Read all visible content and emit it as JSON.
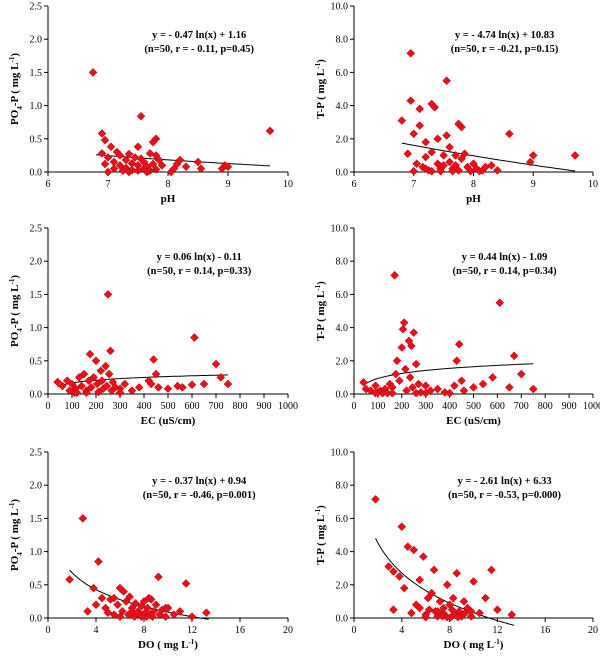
{
  "chart_data": [
    {
      "type": "scatter",
      "xlabel": "pH",
      "ylabel": "PO4-P ( mg L-1)",
      "xlim": [
        6,
        10
      ],
      "ylim": [
        0,
        2.5
      ],
      "xticks": [
        6,
        7,
        8,
        9,
        10
      ],
      "yticks": [
        "0.0",
        "0.5",
        "1.0",
        "1.5",
        "2.0",
        "2.5"
      ],
      "equation": "y = - 0.47 ln(x) + 1.16",
      "stats": "(n=50, r = - 0.11, p=0.45)",
      "trend": {
        "a": -0.47,
        "b": 1.16,
        "from": 6.8,
        "to": 9.7
      },
      "marker_color": "#e8101a",
      "points": [
        [
          6.75,
          1.5
        ],
        [
          6.9,
          0.58
        ],
        [
          6.95,
          0.48
        ],
        [
          6.9,
          0.28
        ],
        [
          6.95,
          0.12
        ],
        [
          7.0,
          0.22
        ],
        [
          7.05,
          0.38
        ],
        [
          7.1,
          0.15
        ],
        [
          7.1,
          0.05
        ],
        [
          7.15,
          0.3
        ],
        [
          7.2,
          0.1
        ],
        [
          7.2,
          0.25
        ],
        [
          7.25,
          0.02
        ],
        [
          7.3,
          0.18
        ],
        [
          7.3,
          0.06
        ],
        [
          7.35,
          0.27
        ],
        [
          7.4,
          0.13
        ],
        [
          7.4,
          0.03
        ],
        [
          7.45,
          0.22
        ],
        [
          7.5,
          0.38
        ],
        [
          7.5,
          0.1
        ],
        [
          7.5,
          0.02
        ],
        [
          7.55,
          0.84
        ],
        [
          7.55,
          0.2
        ],
        [
          7.6,
          0.05
        ],
        [
          7.6,
          0.15
        ],
        [
          7.65,
          0.08
        ],
        [
          7.7,
          0.28
        ],
        [
          7.7,
          0.02
        ],
        [
          7.75,
          0.45
        ],
        [
          7.75,
          0.12
        ],
        [
          7.8,
          0.5
        ],
        [
          7.8,
          0.25
        ],
        [
          7.8,
          0.04
        ],
        [
          7.85,
          0.18
        ],
        [
          7.9,
          0.1
        ],
        [
          8.1,
          0.05
        ],
        [
          8.15,
          0.12
        ],
        [
          8.2,
          0.18
        ],
        [
          8.3,
          0.08
        ],
        [
          8.5,
          0.15
        ],
        [
          8.55,
          0.05
        ],
        [
          8.9,
          0.05
        ],
        [
          8.95,
          0.1
        ],
        [
          9.0,
          0.08
        ],
        [
          9.7,
          0.62
        ],
        [
          7.0,
          0.0
        ],
        [
          7.35,
          0.0
        ],
        [
          7.65,
          0.0
        ],
        [
          8.05,
          0.0
        ]
      ]
    },
    {
      "type": "scatter",
      "xlabel": "pH",
      "ylabel": "T-P ( mg L-1)",
      "xlim": [
        6,
        10
      ],
      "ylim": [
        0,
        10
      ],
      "xticks": [
        6,
        7,
        8,
        9,
        10
      ],
      "yticks": [
        "0.0",
        "2.0",
        "4.0",
        "6.0",
        "8.0",
        "10.0"
      ],
      "equation": "y = - 4.74 ln(x) + 10.83",
      "stats": "(n=50, r = -0.21, p=0.15)",
      "trend": {
        "a": -4.74,
        "b": 10.83,
        "from": 6.8,
        "to": 9.7
      },
      "marker_color": "#e8101a",
      "points": [
        [
          6.8,
          3.1
        ],
        [
          6.9,
          1.1
        ],
        [
          6.95,
          7.15
        ],
        [
          6.95,
          4.3
        ],
        [
          7.0,
          2.3
        ],
        [
          7.05,
          0.5
        ],
        [
          7.1,
          3.8
        ],
        [
          7.1,
          2.8
        ],
        [
          7.15,
          0.3
        ],
        [
          7.2,
          1.8
        ],
        [
          7.2,
          0.9
        ],
        [
          7.25,
          0.1
        ],
        [
          7.3,
          4.1
        ],
        [
          7.3,
          1.2
        ],
        [
          7.35,
          3.9
        ],
        [
          7.4,
          0.5
        ],
        [
          7.4,
          2.0
        ],
        [
          7.45,
          0.2
        ],
        [
          7.5,
          1.0
        ],
        [
          7.5,
          0.4
        ],
        [
          7.55,
          5.5
        ],
        [
          7.55,
          2.2
        ],
        [
          7.6,
          0.6
        ],
        [
          7.6,
          1.5
        ],
        [
          7.65,
          0.2
        ],
        [
          7.7,
          0.4
        ],
        [
          7.7,
          1.0
        ],
        [
          7.75,
          2.9
        ],
        [
          7.75,
          0.1
        ],
        [
          7.8,
          2.7
        ],
        [
          7.8,
          0.8
        ],
        [
          7.85,
          1.1
        ],
        [
          7.9,
          0.3
        ],
        [
          8.0,
          0.5
        ],
        [
          8.05,
          0.2
        ],
        [
          8.15,
          0.1
        ],
        [
          8.3,
          0.4
        ],
        [
          8.6,
          2.3
        ],
        [
          8.95,
          0.6
        ],
        [
          9.0,
          1.0
        ],
        [
          9.7,
          1.0
        ],
        [
          7.0,
          0.05
        ],
        [
          7.3,
          0.05
        ],
        [
          7.65,
          0.05
        ],
        [
          7.95,
          0.05
        ],
        [
          8.1,
          0.05
        ],
        [
          8.2,
          0.3
        ],
        [
          7.2,
          0.2
        ],
        [
          7.45,
          0.05
        ],
        [
          8.4,
          0.1
        ]
      ]
    },
    {
      "type": "scatter",
      "xlabel": "EC (uS/cm)",
      "ylabel": "PO4-P ( mg L-1)",
      "xlim": [
        0,
        1000
      ],
      "ylim": [
        0,
        2.5
      ],
      "xticks": [
        0,
        100,
        200,
        300,
        400,
        500,
        600,
        700,
        800,
        900,
        1000
      ],
      "yticks": [
        "0.0",
        "0.5",
        "1.0",
        "1.5",
        "2.0",
        "2.5"
      ],
      "equation": "y = 0.06 ln(x) - 0.11",
      "stats": "(n=50, r = 0.14, p=0.33)",
      "trend": {
        "a": 0.06,
        "b": -0.11,
        "from": 40,
        "to": 750
      },
      "marker_color": "#e8101a",
      "points": [
        [
          40,
          0.18
        ],
        [
          60,
          0.12
        ],
        [
          80,
          0.2
        ],
        [
          90,
          0.05
        ],
        [
          100,
          0.15
        ],
        [
          110,
          0.02
        ],
        [
          115,
          0.08
        ],
        [
          130,
          0.25
        ],
        [
          140,
          0.12
        ],
        [
          150,
          0.3
        ],
        [
          160,
          0.05
        ],
        [
          170,
          0.2
        ],
        [
          175,
          0.6
        ],
        [
          180,
          0.1
        ],
        [
          190,
          0.25
        ],
        [
          200,
          0.5
        ],
        [
          205,
          0.15
        ],
        [
          210,
          0.03
        ],
        [
          220,
          0.35
        ],
        [
          225,
          0.2
        ],
        [
          230,
          0.08
        ],
        [
          240,
          0.42
        ],
        [
          245,
          0.12
        ],
        [
          250,
          1.5
        ],
        [
          255,
          0.3
        ],
        [
          260,
          0.65
        ],
        [
          265,
          0.05
        ],
        [
          270,
          0.18
        ],
        [
          280,
          0.1
        ],
        [
          300,
          0.08
        ],
        [
          320,
          0.15
        ],
        [
          350,
          0.05
        ],
        [
          380,
          0.1
        ],
        [
          420,
          0.2
        ],
        [
          430,
          0.15
        ],
        [
          440,
          0.52
        ],
        [
          450,
          0.3
        ],
        [
          460,
          0.1
        ],
        [
          500,
          0.08
        ],
        [
          540,
          0.12
        ],
        [
          560,
          0.1
        ],
        [
          600,
          0.14
        ],
        [
          610,
          0.85
        ],
        [
          650,
          0.15
        ],
        [
          700,
          0.45
        ],
        [
          720,
          0.25
        ],
        [
          750,
          0.15
        ],
        [
          120,
          0.02
        ],
        [
          160,
          0.02
        ],
        [
          300,
          0.02
        ]
      ]
    },
    {
      "type": "scatter",
      "xlabel": "EC (uS/cm)",
      "ylabel": "T-P ( mg L-1)",
      "xlim": [
        0,
        1000
      ],
      "ylim": [
        0,
        10
      ],
      "xticks": [
        0,
        100,
        200,
        300,
        400,
        500,
        600,
        700,
        800,
        900,
        1000
      ],
      "yticks": [
        "0.0",
        "2.0",
        "4.0",
        "6.0",
        "8.0",
        "10.0"
      ],
      "equation": "y = 0.44 ln(x) - 1.09",
      "stats": "(n=50, r = 0.14, p=0.34)",
      "trend": {
        "a": 0.44,
        "b": -1.09,
        "from": 40,
        "to": 750
      },
      "marker_color": "#e8101a",
      "points": [
        [
          40,
          0.7
        ],
        [
          50,
          0.3
        ],
        [
          70,
          0.2
        ],
        [
          90,
          0.5
        ],
        [
          100,
          0.1
        ],
        [
          110,
          0.2
        ],
        [
          130,
          0.3
        ],
        [
          140,
          0.05
        ],
        [
          150,
          0.6
        ],
        [
          160,
          0.4
        ],
        [
          170,
          7.15
        ],
        [
          175,
          1.2
        ],
        [
          180,
          2.0
        ],
        [
          190,
          0.8
        ],
        [
          200,
          2.8
        ],
        [
          205,
          3.9
        ],
        [
          210,
          4.3
        ],
        [
          215,
          1.5
        ],
        [
          220,
          0.2
        ],
        [
          230,
          3.2
        ],
        [
          235,
          1.0
        ],
        [
          240,
          2.9
        ],
        [
          245,
          0.4
        ],
        [
          250,
          3.7
        ],
        [
          260,
          1.8
        ],
        [
          270,
          0.6
        ],
        [
          280,
          0.1
        ],
        [
          300,
          0.5
        ],
        [
          320,
          0.2
        ],
        [
          350,
          0.3
        ],
        [
          380,
          0.1
        ],
        [
          420,
          0.5
        ],
        [
          430,
          2.0
        ],
        [
          440,
          3.0
        ],
        [
          450,
          0.8
        ],
        [
          460,
          0.2
        ],
        [
          500,
          0.4
        ],
        [
          540,
          0.6
        ],
        [
          580,
          1.0
        ],
        [
          610,
          5.5
        ],
        [
          650,
          0.4
        ],
        [
          670,
          2.3
        ],
        [
          700,
          1.2
        ],
        [
          750,
          0.3
        ],
        [
          120,
          0.05
        ],
        [
          260,
          0.05
        ],
        [
          300,
          0.05
        ],
        [
          160,
          0.05
        ],
        [
          90,
          0.05
        ],
        [
          400,
          0.05
        ]
      ]
    },
    {
      "type": "scatter",
      "xlabel": "DO ( mg  L-1)",
      "ylabel": "PO4-P ( mg L-1)",
      "xlim": [
        0,
        20
      ],
      "ylim": [
        0,
        2.5
      ],
      "xticks": [
        0,
        4,
        8,
        12,
        16,
        20
      ],
      "yticks": [
        "0.0",
        "0.5",
        "1.0",
        "1.5",
        "2.0",
        "2.5"
      ],
      "equation": "y = - 0.37 ln(x) + 0.94",
      "stats": "(n=50, r = -0.46, p=0.001)",
      "trend": {
        "a": -0.37,
        "b": 0.94,
        "from": 1.8,
        "to": 13.4
      },
      "marker_color": "#e8101a",
      "points": [
        [
          1.8,
          0.58
        ],
        [
          2.9,
          1.5
        ],
        [
          3.3,
          0.1
        ],
        [
          3.8,
          0.45
        ],
        [
          4.0,
          0.2
        ],
        [
          4.2,
          0.85
        ],
        [
          4.5,
          0.3
        ],
        [
          4.8,
          0.15
        ],
        [
          5.0,
          0.08
        ],
        [
          5.2,
          0.28
        ],
        [
          5.5,
          0.05
        ],
        [
          5.8,
          0.2
        ],
        [
          6.0,
          0.45
        ],
        [
          6.2,
          0.1
        ],
        [
          6.3,
          0.4
        ],
        [
          6.5,
          0.25
        ],
        [
          6.7,
          0.05
        ],
        [
          6.8,
          0.32
        ],
        [
          7.0,
          0.15
        ],
        [
          7.2,
          0.02
        ],
        [
          7.3,
          0.22
        ],
        [
          7.5,
          0.1
        ],
        [
          7.6,
          0.05
        ],
        [
          7.8,
          0.18
        ],
        [
          8.0,
          0.25
        ],
        [
          8.1,
          0.08
        ],
        [
          8.2,
          0.02
        ],
        [
          8.3,
          0.15
        ],
        [
          8.5,
          0.05
        ],
        [
          8.6,
          0.28
        ],
        [
          8.8,
          0.1
        ],
        [
          9.0,
          0.2
        ],
        [
          9.2,
          0.62
        ],
        [
          9.3,
          0.05
        ],
        [
          9.5,
          0.12
        ],
        [
          9.8,
          0.02
        ],
        [
          10.0,
          0.15
        ],
        [
          10.5,
          0.05
        ],
        [
          11.0,
          0.1
        ],
        [
          11.5,
          0.52
        ],
        [
          12.0,
          0.02
        ],
        [
          13.2,
          0.08
        ],
        [
          7.0,
          0.1
        ],
        [
          7.8,
          0.02
        ],
        [
          8.7,
          0.02
        ],
        [
          6.0,
          0.02
        ],
        [
          5.5,
          0.3
        ],
        [
          9.8,
          0.15
        ],
        [
          8.4,
          0.3
        ],
        [
          7.4,
          0.08
        ]
      ]
    },
    {
      "type": "scatter",
      "xlabel": "DO ( mg  L-1)",
      "ylabel": "T-P ( mg L-1)",
      "xlim": [
        0,
        20
      ],
      "ylim": [
        0,
        10
      ],
      "xticks": [
        0,
        4,
        8,
        12,
        16,
        20
      ],
      "yticks": [
        "0.0",
        "2.0",
        "4.0",
        "6.0",
        "8.0",
        "10.0"
      ],
      "equation": "y = - 2.61 ln(x) + 6.33",
      "stats": "(n=50, r = -0.53, p=0.000)",
      "trend": {
        "a": -2.61,
        "b": 6.33,
        "from": 1.8,
        "to": 13.4
      },
      "marker_color": "#e8101a",
      "points": [
        [
          1.8,
          7.15
        ],
        [
          2.9,
          3.1
        ],
        [
          3.3,
          2.8
        ],
        [
          3.8,
          2.5
        ],
        [
          4.0,
          5.5
        ],
        [
          4.2,
          1.8
        ],
        [
          4.5,
          4.3
        ],
        [
          4.8,
          0.3
        ],
        [
          5.0,
          4.1
        ],
        [
          5.2,
          0.8
        ],
        [
          5.5,
          2.3
        ],
        [
          5.8,
          3.7
        ],
        [
          6.0,
          0.2
        ],
        [
          6.2,
          1.2
        ],
        [
          6.3,
          0.5
        ],
        [
          6.5,
          1.5
        ],
        [
          6.7,
          2.9
        ],
        [
          6.8,
          0.4
        ],
        [
          7.0,
          0.1
        ],
        [
          7.2,
          1.0
        ],
        [
          7.3,
          0.3
        ],
        [
          7.5,
          0.6
        ],
        [
          7.6,
          0.2
        ],
        [
          7.8,
          2.0
        ],
        [
          8.0,
          0.8
        ],
        [
          8.1,
          0.05
        ],
        [
          8.2,
          0.5
        ],
        [
          8.3,
          1.2
        ],
        [
          8.5,
          0.2
        ],
        [
          8.6,
          2.7
        ],
        [
          8.8,
          0.4
        ],
        [
          9.0,
          0.1
        ],
        [
          9.2,
          1.0
        ],
        [
          9.3,
          0.3
        ],
        [
          9.5,
          0.6
        ],
        [
          9.8,
          0.1
        ],
        [
          10.0,
          2.2
        ],
        [
          10.5,
          0.3
        ],
        [
          11.0,
          1.2
        ],
        [
          11.5,
          2.9
        ],
        [
          12.0,
          0.5
        ],
        [
          13.2,
          0.2
        ],
        [
          7.0,
          0.4
        ],
        [
          7.8,
          0.05
        ],
        [
          8.7,
          0.05
        ],
        [
          6.0,
          0.05
        ],
        [
          5.5,
          0.6
        ],
        [
          9.8,
          0.4
        ],
        [
          3.3,
          0.5
        ],
        [
          7.4,
          0.1
        ]
      ]
    }
  ]
}
